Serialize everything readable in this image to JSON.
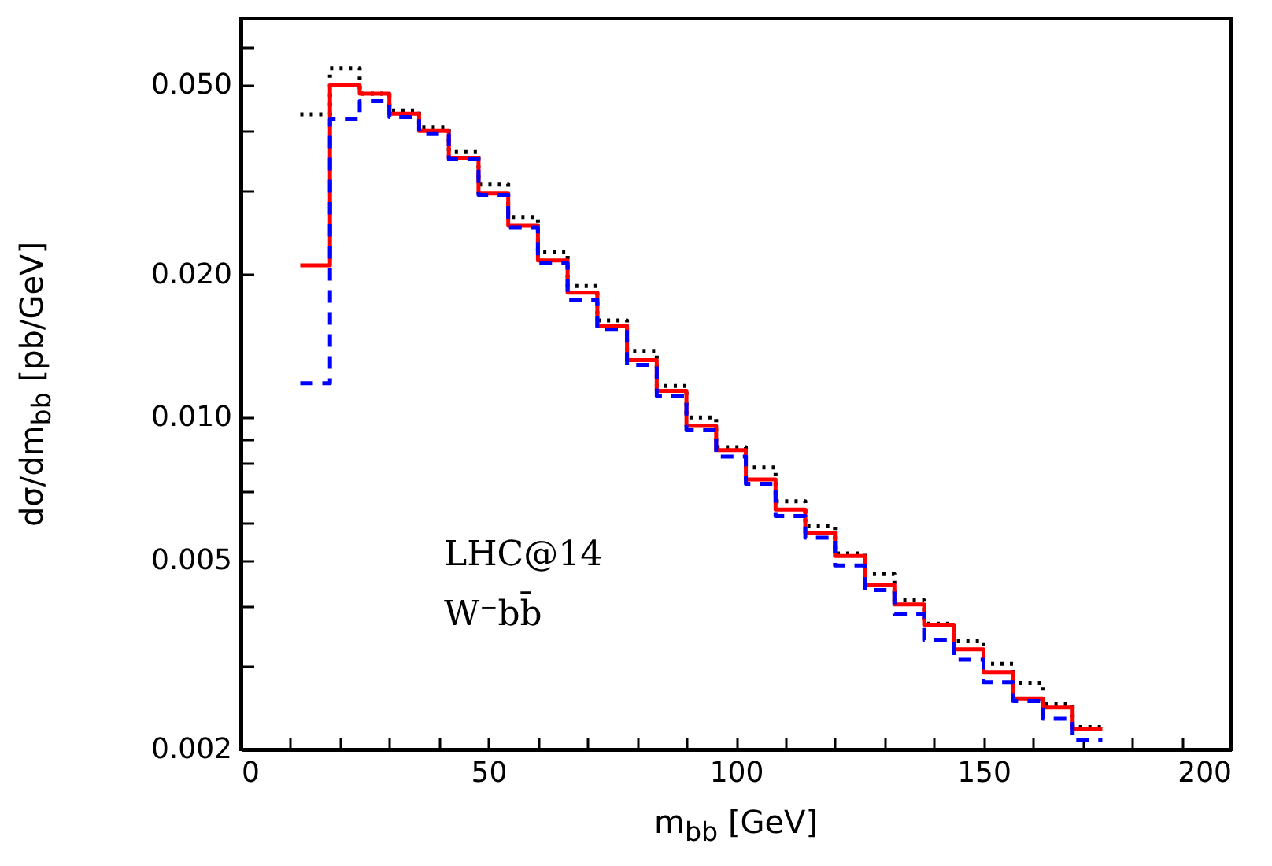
{
  "chart_data": {
    "type": "histogram",
    "xlabel": "m$_{bb}$ [GeV]",
    "ylabel": "dσ/dm$_{bb}$ [pb/GeV]",
    "annotations": [
      "LHC@14",
      "W⁻bb̄"
    ],
    "bins": [
      12,
      18,
      24,
      30,
      36,
      42,
      48,
      54,
      60,
      66,
      72,
      78,
      84,
      90,
      96,
      102,
      108,
      114,
      120,
      126,
      132,
      138,
      144,
      150,
      156,
      162,
      168,
      174
    ],
    "series": [
      {
        "color": "#000000",
        "line_style": "dotted",
        "values": [
          0.0435,
          0.0543,
          0.048,
          0.0443,
          0.0408,
          0.0363,
          0.031,
          0.0264,
          0.0223,
          0.0189,
          0.016,
          0.0138,
          0.01165,
          0.01,
          0.00866,
          0.00785,
          0.00666,
          0.0059,
          0.00517,
          0.00468,
          0.00412,
          0.00368,
          0.00338,
          0.00303,
          0.00276,
          0.00249,
          0.00223
        ]
      },
      {
        "color": "#ff0000",
        "line_style": "solid",
        "values": [
          0.0209,
          0.05,
          0.048,
          0.0436,
          0.0401,
          0.0352,
          0.0296,
          0.0254,
          0.0214,
          0.0183,
          0.0156,
          0.0132,
          0.01137,
          0.0096,
          0.00853,
          0.0074,
          0.0064,
          0.00572,
          0.00511,
          0.00444,
          0.00404,
          0.00366,
          0.00325,
          0.00291,
          0.00256,
          0.00245,
          0.00221
        ]
      },
      {
        "color": "#0000ff",
        "line_style": "dashed",
        "values": [
          0.0118,
          0.0424,
          0.0463,
          0.0429,
          0.0395,
          0.035,
          0.0294,
          0.0251,
          0.0211,
          0.0177,
          0.0153,
          0.0129,
          0.0111,
          0.0094,
          0.00827,
          0.00725,
          0.0062,
          0.00558,
          0.00488,
          0.00433,
          0.00386,
          0.0034,
          0.00309,
          0.00277,
          0.00253,
          0.00232,
          0.00209
        ]
      }
    ],
    "xlim": [
      0,
      200
    ],
    "xticks": [
      0,
      {
        "value": 10,
        "label": null
      },
      {
        "value": 20,
        "label": null
      },
      {
        "value": 30,
        "label": null
      },
      {
        "value": 40,
        "label": null
      },
      50,
      {
        "value": 60,
        "label": null
      },
      {
        "value": 70,
        "label": null
      },
      {
        "value": 80,
        "label": null
      },
      {
        "value": 90,
        "label": null
      },
      100,
      {
        "value": 110,
        "label": null
      },
      {
        "value": 120,
        "label": null
      },
      {
        "value": 130,
        "label": null
      },
      {
        "value": 140,
        "label": null
      },
      150,
      {
        "value": 160,
        "label": null
      },
      {
        "value": 170,
        "label": null
      },
      {
        "value": 180,
        "label": null
      },
      {
        "value": 190,
        "label": null
      },
      200
    ],
    "ylim": [
      0.002,
      0.069
    ],
    "yticks": [
      0.002,
      {
        "value": 0.003,
        "label": null
      },
      {
        "value": 0.004,
        "label": null
      },
      0.005,
      {
        "value": 0.006,
        "label": null
      },
      {
        "value": 0.007,
        "label": null
      },
      {
        "value": 0.008,
        "label": null
      },
      {
        "value": 0.009,
        "label": null
      },
      {
        "value": 0.01,
        "label": "0.010"
      },
      {
        "value": 0.02,
        "label": "0.020"
      },
      {
        "value": 0.03,
        "label": null
      },
      {
        "value": 0.04,
        "label": null
      },
      {
        "value": 0.05,
        "label": "0.050"
      },
      {
        "value": 0.06,
        "label": null
      }
    ],
    "log": true
  }
}
